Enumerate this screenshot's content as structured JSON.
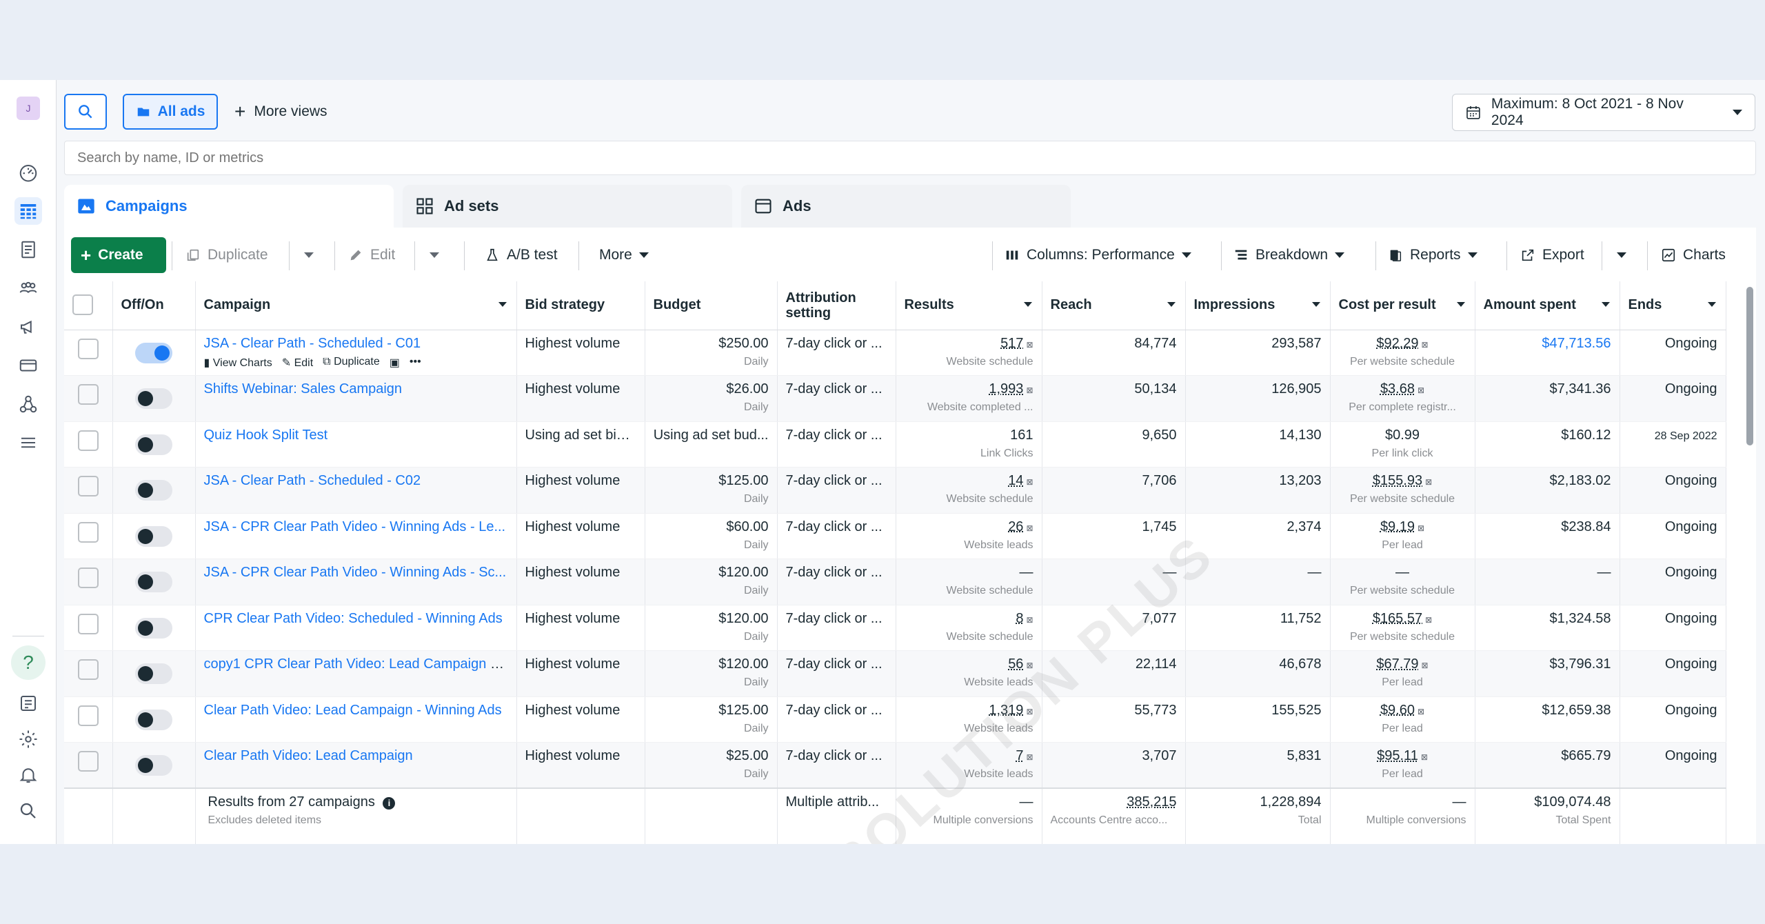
{
  "rail": {
    "avatar": "J",
    "icons": [
      "dashboard-icon",
      "table-icon",
      "pages-icon",
      "audience-icon",
      "megaphone-icon",
      "billing-icon",
      "network-icon",
      "menu-icon"
    ],
    "bottom_icons": [
      "help-icon",
      "notes-icon",
      "settings-icon",
      "bell-icon",
      "search-icon"
    ]
  },
  "topbar": {
    "all_ads": "All ads",
    "more_views": "More views",
    "date_range": "Maximum: 8 Oct 2021 - 8 Nov 2024",
    "search_placeholder": "Search by name, ID or metrics"
  },
  "tabs": {
    "campaigns": "Campaigns",
    "ad_sets": "Ad sets",
    "ads": "Ads"
  },
  "toolbar": {
    "create": "Create",
    "duplicate": "Duplicate",
    "edit": "Edit",
    "ab_test": "A/B test",
    "more": "More",
    "columns": "Columns: Performance",
    "breakdown": "Breakdown",
    "reports": "Reports",
    "export": "Export",
    "charts": "Charts"
  },
  "headers": {
    "offon": "Off/On",
    "campaign": "Campaign",
    "bid": "Bid strategy",
    "budget": "Budget",
    "attribution": "Attribution setting",
    "results": "Results",
    "reach": "Reach",
    "impressions": "Impressions",
    "cpr": "Cost per result",
    "spent": "Amount spent",
    "ends": "Ends"
  },
  "row_actions": {
    "view_charts": "View Charts",
    "edit": "Edit",
    "duplicate": "Duplicate"
  },
  "rows": [
    {
      "name": "JSA - Clear Path - Scheduled - C01",
      "bid": "Highest volume",
      "budget": "$250.00",
      "budget_sub": "Daily",
      "attr": "7-day click or ...",
      "results": "517",
      "results_sub": "Website schedule",
      "reach": "84,774",
      "impr": "293,587",
      "cpr": "$92.29",
      "cpr_sub": "Per website schedule",
      "spent": "$47,713.56",
      "ends": "Ongoing",
      "on": true
    },
    {
      "name": "Shifts Webinar: Sales Campaign",
      "bid": "Highest volume",
      "budget": "$26.00",
      "budget_sub": "Daily",
      "attr": "7-day click or ...",
      "results": "1,993",
      "results_sub": "Website completed ...",
      "reach": "50,134",
      "impr": "126,905",
      "cpr": "$3.68",
      "cpr_sub": "Per complete registr...",
      "spent": "$7,341.36",
      "ends": "Ongoing",
      "on": false
    },
    {
      "name": "Quiz Hook Split Test",
      "bid": "Using ad set bid ...",
      "budget": "Using ad set bud...",
      "budget_sub": "",
      "attr": "7-day click or ...",
      "results": "161",
      "results_sub": "Link Clicks",
      "reach": "9,650",
      "impr": "14,130",
      "cpr": "$0.99",
      "cpr_sub": "Per link click",
      "spent": "$160.12",
      "ends": "28 Sep 2022",
      "on": false
    },
    {
      "name": "JSA - Clear Path - Scheduled - C02",
      "bid": "Highest volume",
      "budget": "$125.00",
      "budget_sub": "Daily",
      "attr": "7-day click or ...",
      "results": "14",
      "results_sub": "Website schedule",
      "reach": "7,706",
      "impr": "13,203",
      "cpr": "$155.93",
      "cpr_sub": "Per website schedule",
      "spent": "$2,183.02",
      "ends": "Ongoing",
      "on": false
    },
    {
      "name": "JSA - CPR Clear Path Video - Winning Ads - Le...",
      "bid": "Highest volume",
      "budget": "$60.00",
      "budget_sub": "Daily",
      "attr": "7-day click or ...",
      "results": "26",
      "results_sub": "Website leads",
      "reach": "1,745",
      "impr": "2,374",
      "cpr": "$9.19",
      "cpr_sub": "Per lead",
      "spent": "$238.84",
      "ends": "Ongoing",
      "on": false
    },
    {
      "name": "JSA - CPR Clear Path Video - Winning Ads - Sc...",
      "bid": "Highest volume",
      "budget": "$120.00",
      "budget_sub": "Daily",
      "attr": "7-day click or ...",
      "results": "—",
      "results_sub": "Website schedule",
      "reach": "—",
      "impr": "—",
      "cpr": "—",
      "cpr_sub": "Per website schedule",
      "spent": "—",
      "ends": "Ongoing",
      "on": false
    },
    {
      "name": "CPR Clear Path Video: Scheduled - Winning Ads",
      "bid": "Highest volume",
      "budget": "$120.00",
      "budget_sub": "Daily",
      "attr": "7-day click or ...",
      "results": "8",
      "results_sub": "Website schedule",
      "reach": "7,077",
      "impr": "11,752",
      "cpr": "$165.57",
      "cpr_sub": "Per website schedule",
      "spent": "$1,324.58",
      "ends": "Ongoing",
      "on": false
    },
    {
      "name": "copy1 CPR Clear Path Video: Lead Campaign - ...",
      "bid": "Highest volume",
      "budget": "$120.00",
      "budget_sub": "Daily",
      "attr": "7-day click or ...",
      "results": "56",
      "results_sub": "Website leads",
      "reach": "22,114",
      "impr": "46,678",
      "cpr": "$67.79",
      "cpr_sub": "Per lead",
      "spent": "$3,796.31",
      "ends": "Ongoing",
      "on": false
    },
    {
      "name": "Clear Path Video: Lead Campaign - Winning Ads",
      "bid": "Highest volume",
      "budget": "$125.00",
      "budget_sub": "Daily",
      "attr": "7-day click or ...",
      "results": "1,319",
      "results_sub": "Website leads",
      "reach": "55,773",
      "impr": "155,525",
      "cpr": "$9.60",
      "cpr_sub": "Per lead",
      "spent": "$12,659.38",
      "ends": "Ongoing",
      "on": false
    },
    {
      "name": "Clear Path Video: Lead Campaign",
      "bid": "Highest volume",
      "budget": "$25.00",
      "budget_sub": "Daily",
      "attr": "7-day click or ...",
      "results": "7",
      "results_sub": "Website leads",
      "reach": "3,707",
      "impr": "5,831",
      "cpr": "$95.11",
      "cpr_sub": "Per lead",
      "spent": "$665.79",
      "ends": "Ongoing",
      "on": false
    }
  ],
  "totals": {
    "label": "Results from 27 campaigns",
    "label_sub": "Excludes deleted items",
    "attr": "Multiple attrib...",
    "results": "—",
    "results_sub": "Multiple conversions",
    "reach": "385,215",
    "reach_sub": "Accounts Centre acco...",
    "impr": "1,228,894",
    "impr_sub": "Total",
    "cpr": "—",
    "cpr_sub": "Multiple conversions",
    "spent": "$109,074.48",
    "spent_sub": "Total Spent"
  },
  "watermark": "DMSOLUTION PLUS"
}
